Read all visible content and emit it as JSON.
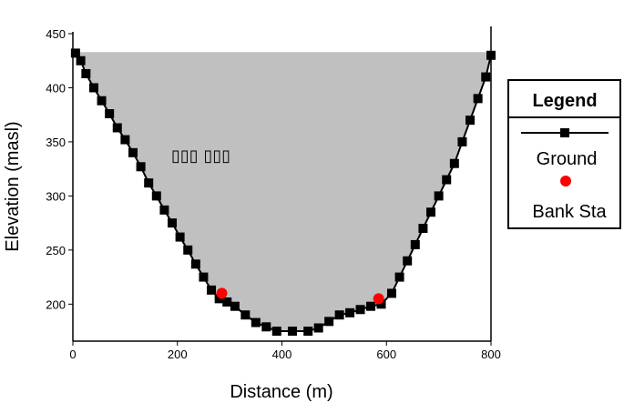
{
  "chart_data": {
    "type": "line",
    "title": "",
    "xlabel": "Distance (m)",
    "ylabel": "Elevation (masl)",
    "xlim": [
      0,
      800
    ],
    "ylim": [
      170,
      450
    ],
    "x_ticks": [
      0,
      200,
      400,
      600,
      800
    ],
    "y_ticks": [
      200,
      250,
      300,
      350,
      400,
      450
    ],
    "fill_color": "#c0c0c0",
    "annotation": "▯▯▯ ▯▯▯",
    "legend": {
      "title": "Legend",
      "position": "right",
      "entries": [
        "Ground",
        "Bank Sta"
      ]
    },
    "series": [
      {
        "name": "Ground",
        "color": "#000000",
        "marker": "square",
        "x": [
          5,
          15,
          25,
          40,
          55,
          70,
          85,
          100,
          115,
          130,
          145,
          160,
          175,
          190,
          205,
          220,
          235,
          250,
          265,
          280,
          295,
          310,
          330,
          350,
          370,
          390,
          420,
          450,
          470,
          490,
          510,
          530,
          550,
          570,
          590,
          610,
          625,
          640,
          655,
          670,
          685,
          700,
          715,
          730,
          745,
          760,
          775,
          790,
          800
        ],
        "y": [
          432,
          425,
          413,
          400,
          388,
          376,
          363,
          352,
          340,
          327,
          312,
          300,
          287,
          275,
          262,
          250,
          237,
          225,
          213,
          205,
          202,
          198,
          190,
          183,
          179,
          175,
          175,
          175,
          178,
          184,
          190,
          192,
          195,
          198,
          200,
          210,
          225,
          240,
          255,
          270,
          285,
          300,
          315,
          330,
          350,
          370,
          390,
          410,
          430
        ]
      },
      {
        "name": "Bank Sta",
        "color": "#ff0000",
        "marker": "circle",
        "x": [
          285,
          585
        ],
        "y": [
          210,
          205
        ]
      }
    ]
  }
}
